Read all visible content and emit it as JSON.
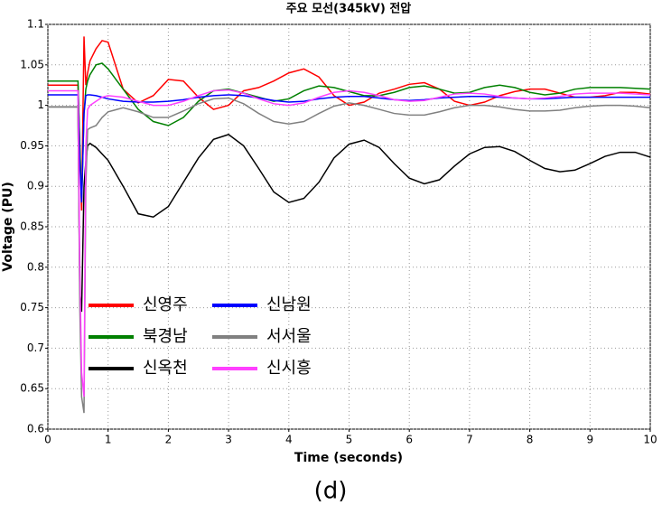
{
  "chart_data": {
    "type": "line",
    "title": "주요 모선(345kV) 전압",
    "xlabel": "Time (seconds)",
    "ylabel": "Voltage (PU)",
    "caption": "(d)",
    "x": [
      0,
      0.5,
      0.53,
      0.56,
      0.6,
      0.63,
      0.66,
      0.7,
      0.8,
      0.9,
      1.0,
      1.25,
      1.5,
      1.75,
      2.0,
      2.25,
      2.5,
      2.75,
      3.0,
      3.25,
      3.5,
      3.75,
      4.0,
      4.25,
      4.5,
      4.75,
      5.0,
      5.25,
      5.5,
      5.75,
      6.0,
      6.25,
      6.5,
      6.75,
      7.0,
      7.25,
      7.5,
      7.75,
      8.0,
      8.25,
      8.5,
      8.75,
      9.0,
      9.25,
      9.5,
      9.75,
      10
    ],
    "series": [
      {
        "name": "신영주",
        "color": "#ff0000",
        "values": [
          1.025,
          1.025,
          0.95,
          0.87,
          1.085,
          1.025,
          1.04,
          1.055,
          1.07,
          1.08,
          1.078,
          1.02,
          1.003,
          1.012,
          1.032,
          1.03,
          1.01,
          0.995,
          1.0,
          1.018,
          1.022,
          1.03,
          1.04,
          1.045,
          1.035,
          1.012,
          1.0,
          1.004,
          1.015,
          1.02,
          1.026,
          1.028,
          1.02,
          1.005,
          1.0,
          1.004,
          1.012,
          1.017,
          1.02,
          1.02,
          1.015,
          1.01,
          1.01,
          1.012,
          1.016,
          1.016,
          1.014
        ]
      },
      {
        "name": "북경남",
        "color": "#008000",
        "values": [
          1.03,
          1.03,
          0.95,
          0.88,
          0.99,
          1.02,
          1.03,
          1.038,
          1.05,
          1.052,
          1.045,
          1.02,
          0.995,
          0.98,
          0.975,
          0.985,
          1.005,
          1.018,
          1.02,
          1.015,
          1.01,
          1.005,
          1.008,
          1.018,
          1.024,
          1.022,
          1.017,
          1.012,
          1.012,
          1.016,
          1.022,
          1.024,
          1.02,
          1.015,
          1.016,
          1.022,
          1.025,
          1.022,
          1.016,
          1.013,
          1.015,
          1.02,
          1.022,
          1.022,
          1.022,
          1.021,
          1.02
        ]
      },
      {
        "name": "신옥천",
        "color": "#000000",
        "values": [
          0.998,
          0.998,
          0.77,
          0.745,
          0.9,
          0.93,
          0.95,
          0.953,
          0.948,
          0.94,
          0.932,
          0.9,
          0.866,
          0.862,
          0.875,
          0.905,
          0.935,
          0.958,
          0.964,
          0.95,
          0.922,
          0.893,
          0.88,
          0.885,
          0.905,
          0.935,
          0.952,
          0.957,
          0.948,
          0.928,
          0.91,
          0.903,
          0.908,
          0.925,
          0.94,
          0.948,
          0.949,
          0.943,
          0.932,
          0.922,
          0.918,
          0.92,
          0.928,
          0.937,
          0.942,
          0.942,
          0.936
        ]
      },
      {
        "name": "신남원",
        "color": "#0000ff",
        "values": [
          1.013,
          1.013,
          0.93,
          0.88,
          0.99,
          1.012,
          1.013,
          1.013,
          1.012,
          1.01,
          1.008,
          1.005,
          1.004,
          1.004,
          1.005,
          1.007,
          1.01,
          1.012,
          1.013,
          1.012,
          1.009,
          1.006,
          1.004,
          1.005,
          1.008,
          1.01,
          1.011,
          1.011,
          1.009,
          1.007,
          1.006,
          1.007,
          1.009,
          1.01,
          1.011,
          1.011,
          1.01,
          1.009,
          1.008,
          1.008,
          1.009,
          1.01,
          1.01,
          1.01,
          1.01,
          1.01,
          1.01
        ]
      },
      {
        "name": "서서울",
        "color": "#808080",
        "values": [
          0.998,
          0.998,
          0.75,
          0.64,
          0.62,
          0.9,
          0.97,
          0.972,
          0.975,
          0.985,
          0.992,
          0.997,
          0.992,
          0.985,
          0.985,
          0.993,
          1.002,
          1.008,
          1.009,
          1.002,
          0.99,
          0.98,
          0.977,
          0.98,
          0.99,
          0.999,
          1.003,
          1.0,
          0.995,
          0.99,
          0.988,
          0.988,
          0.992,
          0.997,
          1.0,
          1.0,
          0.998,
          0.995,
          0.993,
          0.993,
          0.994,
          0.997,
          0.999,
          1.0,
          1.0,
          0.999,
          0.997
        ]
      },
      {
        "name": "신시흥",
        "color": "#ff40ff",
        "values": [
          1.018,
          1.018,
          0.8,
          0.67,
          0.64,
          0.95,
          0.995,
          1.0,
          1.005,
          1.01,
          1.012,
          1.01,
          1.005,
          1.0,
          1.0,
          1.005,
          1.012,
          1.018,
          1.019,
          1.015,
          1.008,
          1.002,
          1.0,
          1.003,
          1.01,
          1.016,
          1.018,
          1.016,
          1.012,
          1.007,
          1.005,
          1.006,
          1.01,
          1.014,
          1.015,
          1.014,
          1.011,
          1.009,
          1.008,
          1.009,
          1.011,
          1.014,
          1.015,
          1.015,
          1.015,
          1.014,
          1.013
        ]
      }
    ],
    "xlim": [
      0,
      10
    ],
    "xticks": [
      0,
      1,
      2,
      3,
      4,
      5,
      6,
      7,
      8,
      9,
      10
    ],
    "ylim": [
      0.6,
      1.1
    ],
    "yticks": [
      0.6,
      0.65,
      0.7,
      0.75,
      0.8,
      0.85,
      0.9,
      0.95,
      1,
      1.05,
      1.1
    ],
    "grid": true,
    "legend": "lower left"
  }
}
